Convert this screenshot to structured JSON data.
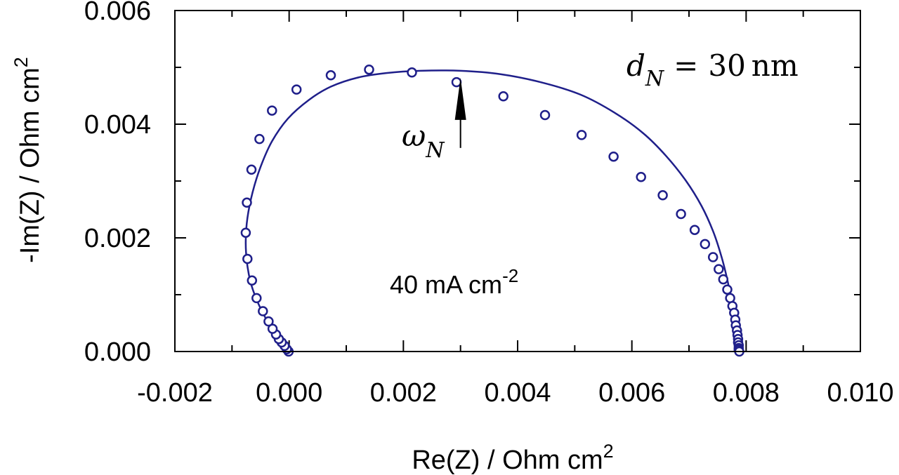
{
  "chart_data": {
    "type": "scatter",
    "title": "",
    "xlabel": "Re(Z) / Ohm cm",
    "xlabel_sup": "2",
    "ylabel": "-Im(Z) / Ohm cm",
    "ylabel_sup": "2",
    "xlim": [
      -0.002,
      0.01
    ],
    "ylim": [
      0.0,
      0.006
    ],
    "x_ticks": [
      -0.002,
      0.0,
      0.002,
      0.004,
      0.006,
      0.008,
      0.01
    ],
    "x_tick_labels": [
      "-0.002",
      "0.000",
      "0.002",
      "0.004",
      "0.006",
      "0.008",
      "0.010"
    ],
    "y_ticks": [
      0.0,
      0.002,
      0.004,
      0.006
    ],
    "y_tick_labels": [
      "0.000",
      "0.002",
      "0.004",
      "0.006"
    ],
    "grid": false,
    "color": "#1f1f8a",
    "annotations": {
      "current_density": "40 mA cm",
      "current_density_sup": "-2",
      "thickness_sym": "d",
      "thickness_sub": "N",
      "thickness_eq": "=",
      "thickness_val": "30",
      "thickness_unit": "nm",
      "omega_sym": "ω",
      "omega_sub": "N",
      "omega_point": [
        0.003,
        0.00494
      ]
    },
    "series": [
      {
        "kind": "markers",
        "x": [
          -1e-05,
          -4e-05,
          -8e-05,
          -0.00013,
          -0.00018,
          -0.00023,
          -0.00029,
          -0.00036,
          -0.00046,
          -0.00057,
          -0.00065,
          -0.00073,
          -0.00076,
          -0.00074,
          -0.00066,
          -0.00052,
          -0.0003,
          0.00013,
          0.00073,
          0.0014,
          0.00215,
          0.00293,
          0.00375,
          0.00448,
          0.00512,
          0.00568,
          0.00616,
          0.00654,
          0.00686,
          0.0071,
          0.00728,
          0.00742,
          0.00752,
          0.0076,
          0.00767,
          0.00772,
          0.00776,
          0.00779,
          0.00781,
          0.00782,
          0.00784,
          0.00785,
          0.00786,
          0.00786,
          0.00787,
          0.00787,
          0.00787,
          0.00788
        ],
        "y": [
          0.0,
          4e-05,
          0.0001,
          0.00016,
          0.00022,
          0.0003,
          0.0004,
          0.00053,
          0.00071,
          0.00094,
          0.00125,
          0.00163,
          0.00209,
          0.00262,
          0.0032,
          0.00374,
          0.00424,
          0.00461,
          0.00486,
          0.00496,
          0.00491,
          0.00474,
          0.00449,
          0.00416,
          0.00381,
          0.00343,
          0.00307,
          0.00275,
          0.00242,
          0.00214,
          0.00189,
          0.00166,
          0.00145,
          0.00127,
          0.00109,
          0.00094,
          0.0008,
          0.00068,
          0.00056,
          0.00046,
          0.00037,
          0.00029,
          0.00022,
          0.00016,
          0.00011,
          6e-05,
          3e-05,
          0.0
        ]
      },
      {
        "kind": "line",
        "x": [
          -1e-05,
          -8e-05,
          -0.00018,
          -0.0003,
          -0.00044,
          -0.00058,
          -0.00068,
          -0.00074,
          -0.00076,
          -0.00073,
          -0.00064,
          -0.0005,
          -0.0003,
          -2e-05,
          0.00035,
          0.00073,
          0.0012,
          0.0017,
          0.0023,
          0.003,
          0.0037,
          0.0044,
          0.0051,
          0.0057,
          0.0062,
          0.0066,
          0.00695,
          0.00722,
          0.00742,
          0.00756,
          0.00766,
          0.00773,
          0.00778,
          0.00782,
          0.00785,
          0.00787,
          0.00788
        ],
        "y": [
          0.0,
          9e-05,
          0.00022,
          0.0004,
          0.00064,
          0.00094,
          0.00124,
          0.00158,
          0.00195,
          0.00235,
          0.0028,
          0.00325,
          0.0037,
          0.0041,
          0.00443,
          0.00466,
          0.00482,
          0.0049,
          0.00494,
          0.00494,
          0.00488,
          0.00474,
          0.00452,
          0.0042,
          0.00384,
          0.00344,
          0.003,
          0.00256,
          0.00212,
          0.0017,
          0.00131,
          0.00097,
          0.00068,
          0.00043,
          0.00023,
          8e-05,
          0.0
        ]
      }
    ]
  }
}
